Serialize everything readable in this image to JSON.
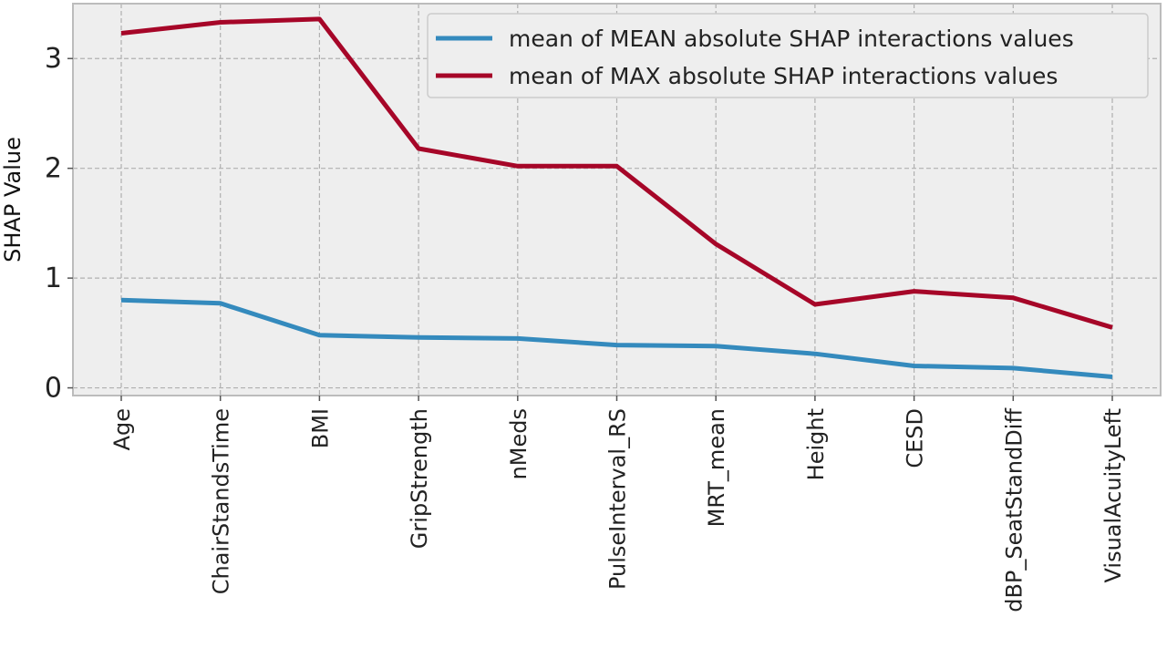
{
  "chart_data": {
    "type": "line",
    "ylabel": "SHAP Value",
    "categories": [
      "Age",
      "ChairStandsTime",
      "BMI",
      "GripStrength",
      "nMeds",
      "PulseInterval_RS",
      "MRT_mean",
      "Height",
      "CESD",
      "dBP_SeatStandDiff",
      "VisualAcuityLeft"
    ],
    "yticks": [
      "0",
      "1",
      "2",
      "3"
    ],
    "ylim": [
      -0.07,
      3.5
    ],
    "grid": true,
    "legend_position": "top-right",
    "series": [
      {
        "name": "mean of MEAN absolute SHAP interactions values",
        "color": "#348abd",
        "values": [
          0.8,
          0.77,
          0.48,
          0.46,
          0.45,
          0.39,
          0.38,
          0.31,
          0.2,
          0.18,
          0.1
        ]
      },
      {
        "name": "mean of MAX absolute SHAP interactions values",
        "color": "#a60628",
        "values": [
          3.23,
          3.33,
          3.36,
          2.18,
          2.02,
          2.02,
          1.31,
          0.76,
          0.88,
          0.82,
          0.55
        ]
      }
    ]
  }
}
